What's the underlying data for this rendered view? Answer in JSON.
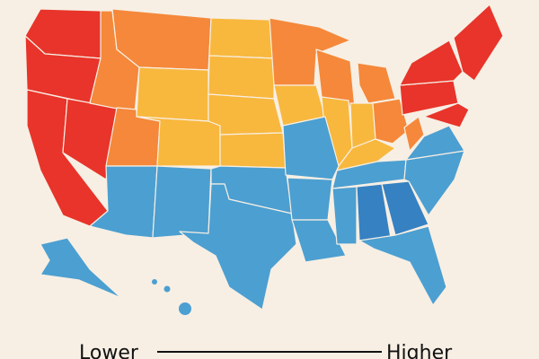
{
  "legend": {
    "low_label": "Lower",
    "high_label": "Higher"
  }
}
